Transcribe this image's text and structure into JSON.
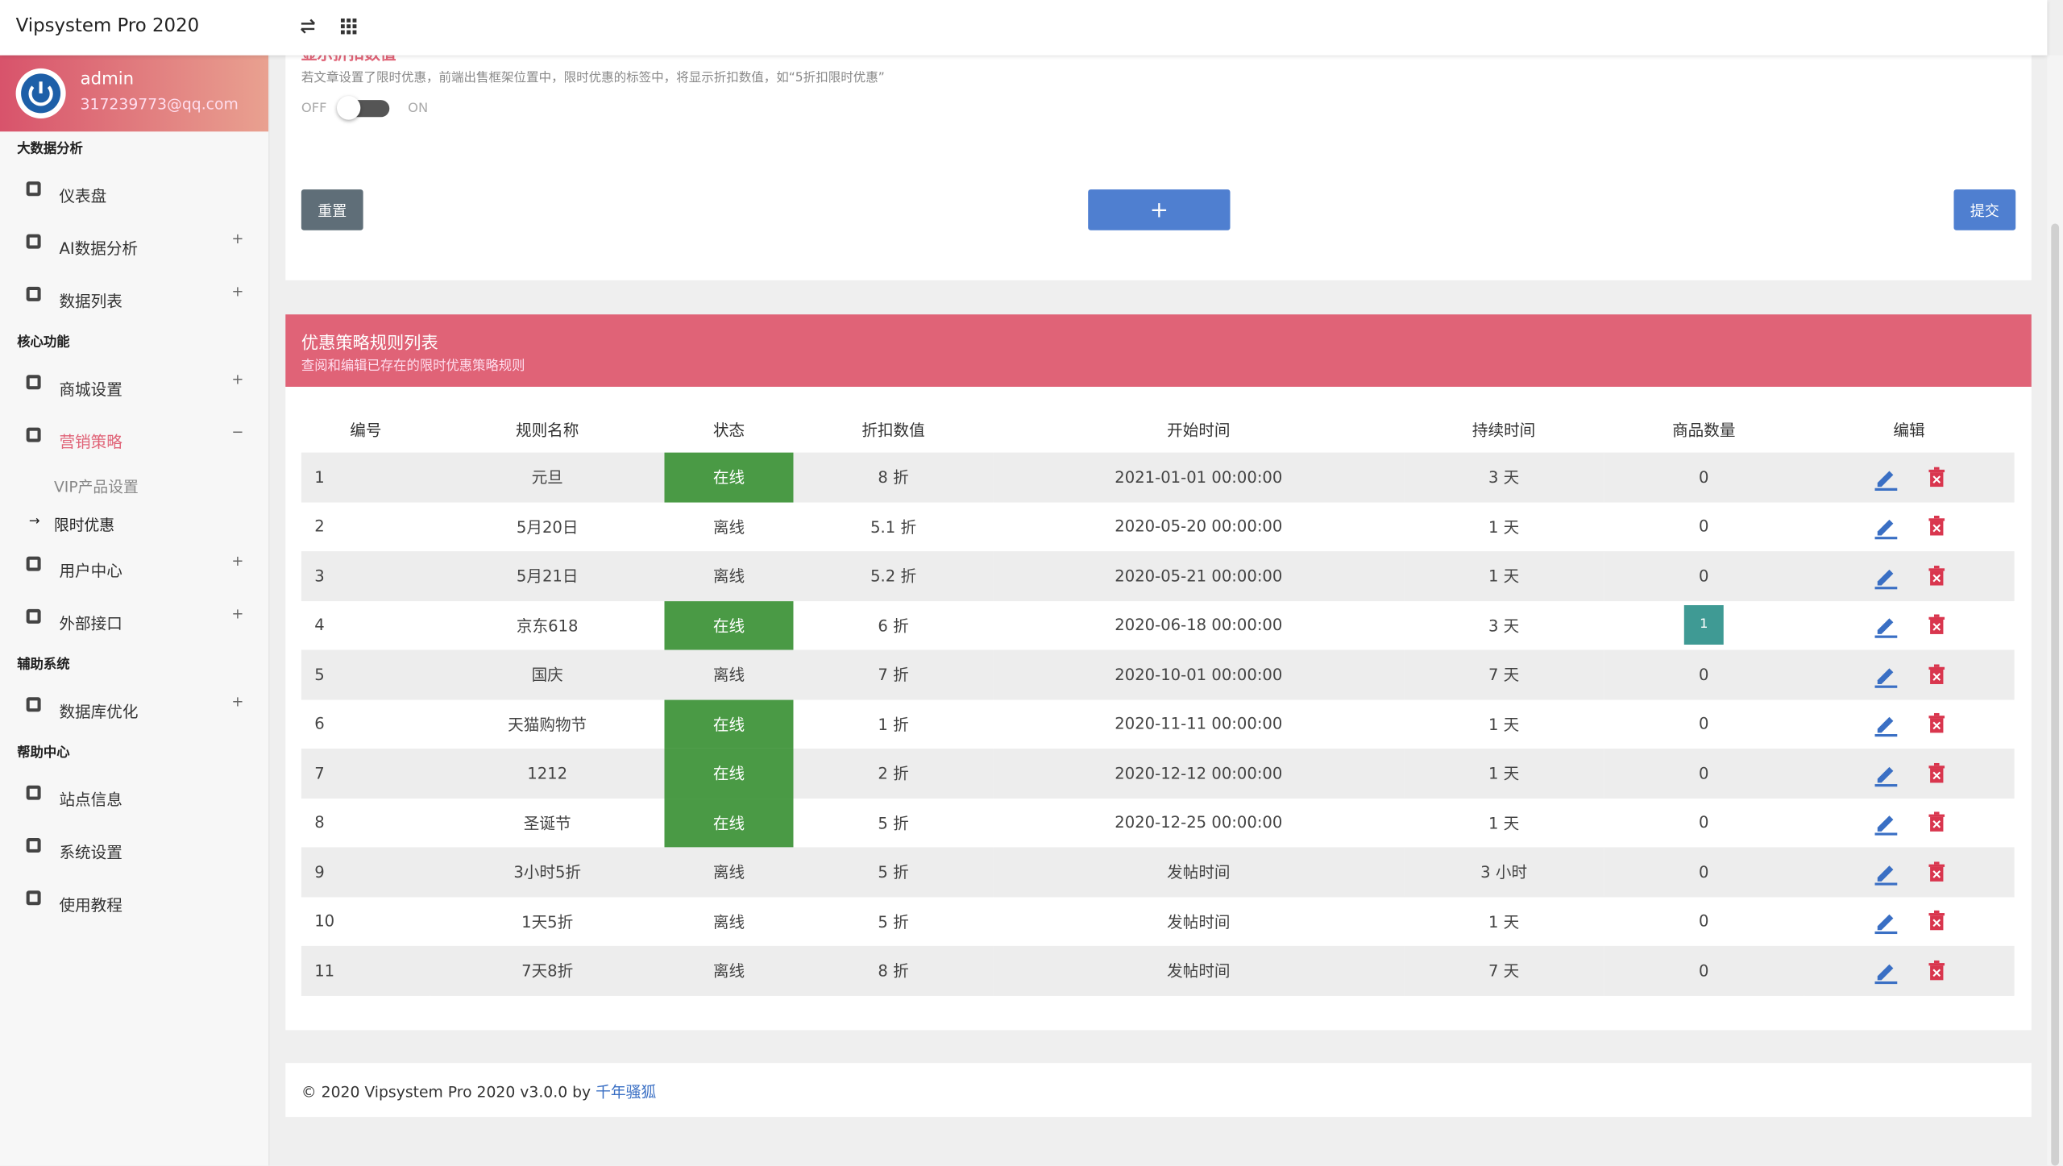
{
  "header": {
    "brand": "Vipsystem Pro 2020"
  },
  "user": {
    "name": "admin",
    "email": "317239773@qq.com"
  },
  "sidebar": [
    {
      "title": "大数据分析",
      "items": [
        {
          "label": "仪表盘"
        },
        {
          "label": "AI数据分析",
          "toggle": "+"
        },
        {
          "label": "数据列表",
          "toggle": "+"
        }
      ]
    },
    {
      "title": "核心功能",
      "items": [
        {
          "label": "商城设置",
          "toggle": "+"
        },
        {
          "label": "营销策略",
          "toggle": "−",
          "color": "#e06377",
          "children": [
            {
              "label": "VIP产品设置"
            },
            {
              "label": "限时优惠",
              "prefix": "→"
            }
          ]
        },
        {
          "label": "用户中心",
          "toggle": "+"
        },
        {
          "label": "外部接口",
          "toggle": "+"
        }
      ]
    },
    {
      "title": "辅助系统",
      "items": [
        {
          "label": "数据库优化",
          "toggle": "+"
        }
      ]
    },
    {
      "title": "帮助中心",
      "items": [
        {
          "label": "站点信息"
        },
        {
          "label": "系统设置"
        },
        {
          "label": "使用教程"
        }
      ]
    }
  ],
  "setting": {
    "title": "显示折扣数值",
    "description": "若文章设置了限时优惠，前端出售框架位置中，限时优惠的标签中，将显示折扣数值，如“5折扣限时优惠”",
    "off": "OFF",
    "on": "ON"
  },
  "buttons": {
    "reset": "重置",
    "add": "+",
    "submit": "提交"
  },
  "panel": {
    "title": "优惠策略规则列表",
    "subtitle": "查阅和编辑已存在的限时优惠策略规则"
  },
  "table": {
    "status_colors": {
      "在线": "#4a9a45"
    },
    "count_highlight_color": "#3f9a94",
    "columns": [
      "编号",
      "规则名称",
      "状态",
      "折扣数值",
      "开始时间",
      "持续时间",
      "商品数量",
      "编辑"
    ],
    "rows": [
      [
        "1",
        "元旦",
        "在线",
        "8 折",
        "2021-01-01 00:00:00",
        "3 天",
        "0"
      ],
      [
        "2",
        "5月20日",
        "离线",
        "5.1 折",
        "2020-05-20 00:00:00",
        "1 天",
        "0"
      ],
      [
        "3",
        "5月21日",
        "离线",
        "5.2 折",
        "2020-05-21 00:00:00",
        "1 天",
        "0"
      ],
      [
        "4",
        "京东618",
        "在线",
        "6 折",
        "2020-06-18 00:00:00",
        "3 天",
        "1"
      ],
      [
        "5",
        "国庆",
        "离线",
        "7 折",
        "2020-10-01 00:00:00",
        "7 天",
        "0"
      ],
      [
        "6",
        "天猫购物节",
        "在线",
        "1 折",
        "2020-11-11 00:00:00",
        "1 天",
        "0"
      ],
      [
        "7",
        "1212",
        "在线",
        "2 折",
        "2020-12-12 00:00:00",
        "1 天",
        "0"
      ],
      [
        "8",
        "圣诞节",
        "在线",
        "5 折",
        "2020-12-25 00:00:00",
        "1 天",
        "0"
      ],
      [
        "9",
        "3小时5折",
        "离线",
        "5 折",
        "发帖时间",
        "3 小时",
        "0"
      ],
      [
        "10",
        "1天5折",
        "离线",
        "5 折",
        "发帖时间",
        "1 天",
        "0"
      ],
      [
        "11",
        "7天8折",
        "离线",
        "8 折",
        "发帖时间",
        "7 天",
        "0"
      ]
    ]
  },
  "footer": {
    "text": "© 2020 Vipsystem Pro 2020 v3.0.0 by",
    "link": "千年骚狐"
  }
}
